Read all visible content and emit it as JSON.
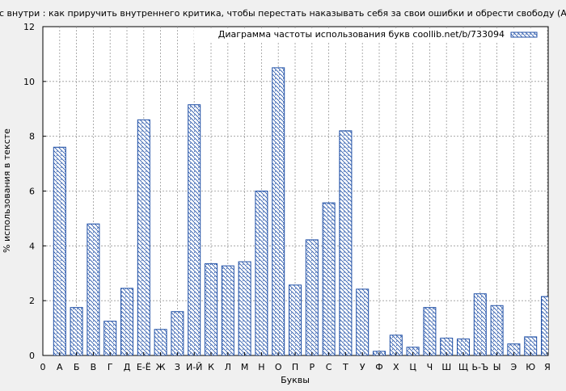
{
  "chart_data": {
    "type": "bar",
    "title": "лос внутри : как приручить внутреннего критика, чтобы перестать наказывать себя за свои ошибки и обрести свободу (Ана",
    "xlabel": "Буквы",
    "ylabel": "% использования в тексте",
    "legend": "Диаграмма частоты использования букв coollib.net/b/733094",
    "legend_position": "top-right",
    "grid": true,
    "ylim": [
      0,
      12
    ],
    "yticks": [
      "0",
      "2",
      "4",
      "6",
      "8",
      "10",
      "12"
    ],
    "x_first_tick": "0",
    "categories": [
      "А",
      "Б",
      "В",
      "Г",
      "Д",
      "Е-Ё",
      "Ж",
      "З",
      "И-Й",
      "К",
      "Л",
      "М",
      "Н",
      "О",
      "П",
      "Р",
      "С",
      "Т",
      "У",
      "Ф",
      "Х",
      "Ц",
      "Ч",
      "Ш",
      "Щ",
      "Ь-Ъ",
      "Ы",
      "Э",
      "Ю",
      "Я"
    ],
    "values": [
      7.6,
      1.75,
      4.8,
      1.25,
      2.45,
      8.6,
      0.95,
      1.6,
      9.15,
      3.35,
      3.27,
      3.42,
      6.0,
      10.5,
      2.57,
      4.22,
      5.57,
      8.2,
      2.42,
      0.15,
      0.74,
      0.3,
      1.75,
      0.63,
      0.6,
      2.25,
      1.82,
      0.42,
      0.68,
      2.15
    ],
    "colors": {
      "bar_stroke": "#1f4fa6",
      "plot_bg": "#ffffff",
      "grid": "#999999",
      "page_bg": "#f0f0f0"
    }
  }
}
